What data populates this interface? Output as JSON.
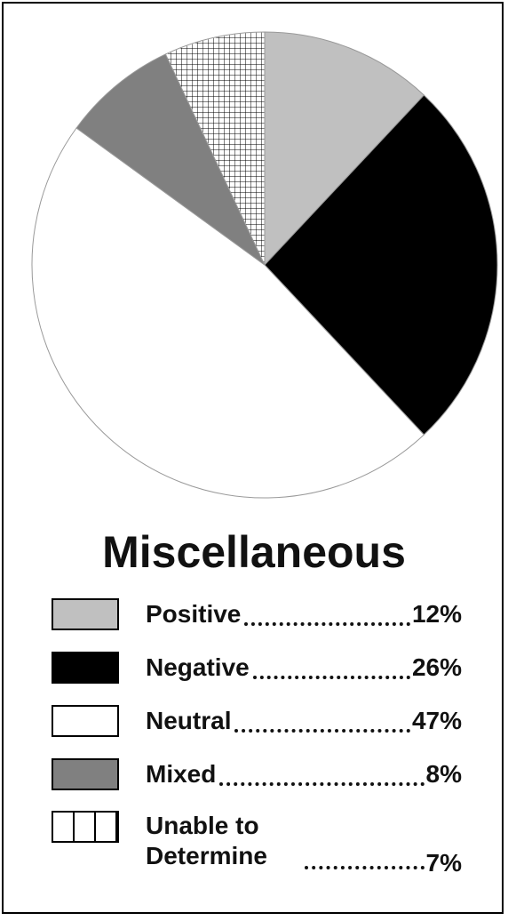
{
  "chart_data": {
    "type": "pie",
    "title": "Miscellaneous",
    "categories": [
      "Positive",
      "Negative",
      "Neutral",
      "Mixed",
      "Unable to Determine"
    ],
    "values": [
      12,
      26,
      47,
      8,
      7
    ],
    "value_labels": [
      "12%",
      "26%",
      "47%",
      "8%",
      "7%"
    ],
    "colors": [
      "#c0c0c0",
      "#000000",
      "#ffffff",
      "#808080",
      "crosshatch"
    ]
  }
}
